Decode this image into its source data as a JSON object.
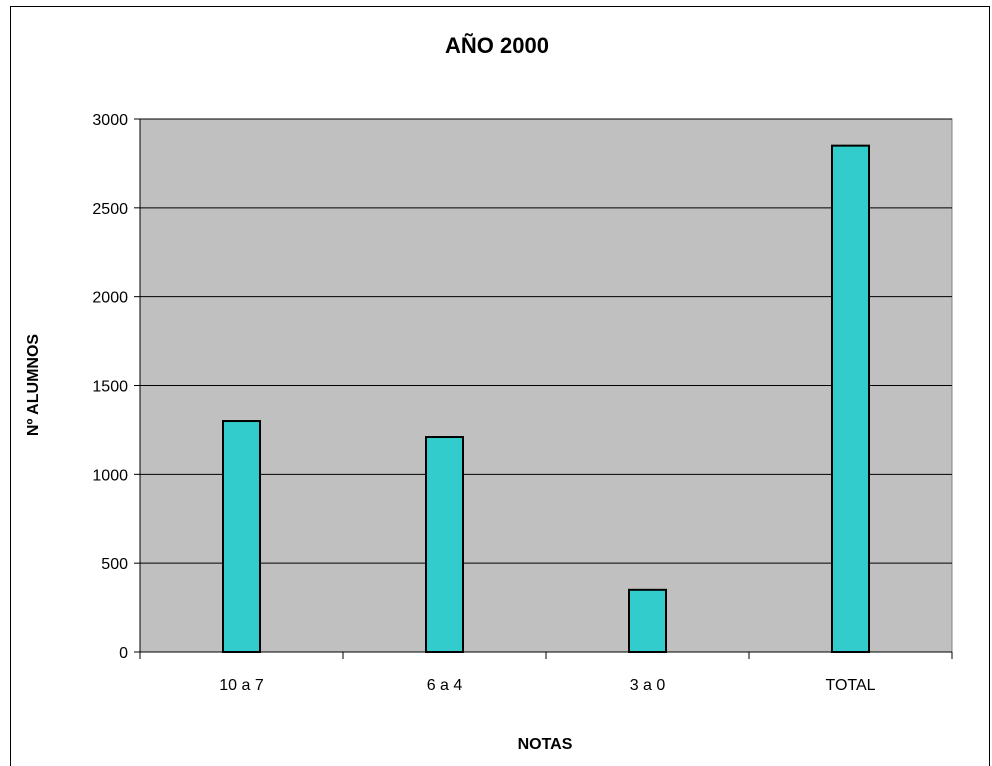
{
  "chart_data": {
    "type": "bar",
    "title": "AÑO 2000",
    "xlabel": "NOTAS",
    "ylabel": "Nº ALUMNOS",
    "categories": [
      "10 a 7",
      "6 a 4",
      "3 a 0",
      "TOTAL"
    ],
    "values": [
      1300,
      1210,
      350,
      2850
    ],
    "ylim": [
      0,
      3000
    ],
    "yticks": [
      "0",
      "500",
      "1000",
      "1500",
      "2000",
      "2500",
      "3000"
    ],
    "grid": true,
    "legend": "none",
    "bar_color": "#33cccc",
    "plot_background": "#c0c0c0"
  }
}
